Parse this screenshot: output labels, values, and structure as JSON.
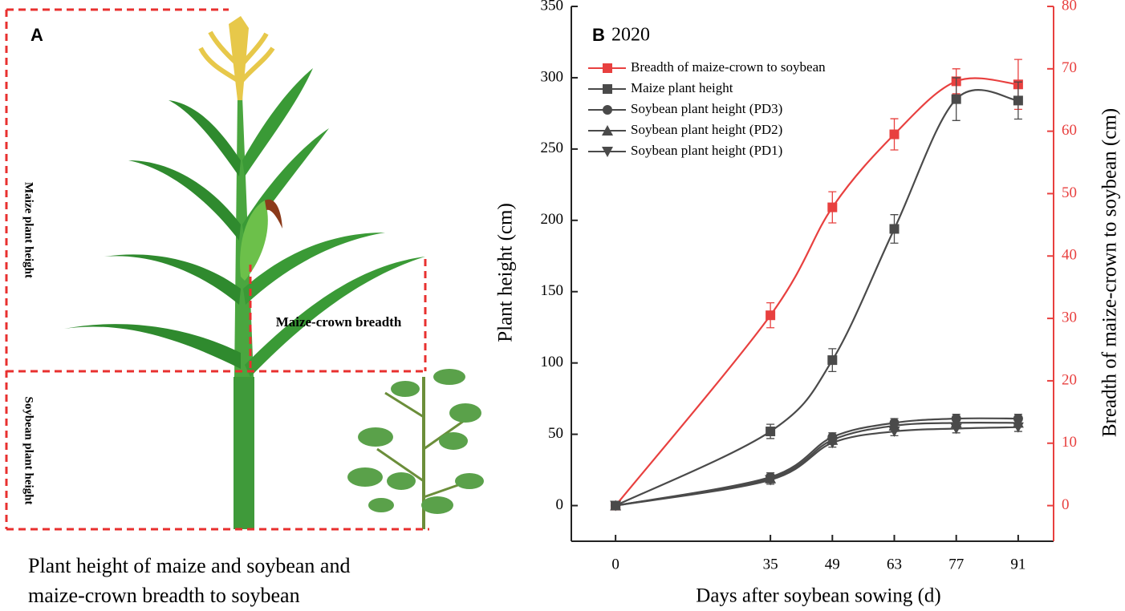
{
  "illustration": {
    "panel_label": "A",
    "maize_height_label": "Maize plant height",
    "soybean_height_label": "Soybean plant height",
    "crown_breadth_label": "Maize-crown breadth",
    "caption": [
      "Plant height of maize and soybean and",
      "maize-crown breadth to soybean"
    ]
  },
  "chart_data": {
    "type": "line",
    "panel_label": "B",
    "title": "2020",
    "xlabel": "Days after soybean sowing (d)",
    "ylabel": "Plant height (cm)",
    "y2label": "Breadth of maize-crown to soybean (cm)",
    "x": [
      0,
      35,
      49,
      63,
      77,
      91
    ],
    "xlim": [
      -10,
      99
    ],
    "xticks": [
      0,
      35,
      49,
      63,
      77,
      91
    ],
    "ylim": [
      -25,
      350
    ],
    "yticks": [
      0,
      50,
      100,
      150,
      200,
      250,
      300,
      350
    ],
    "y2lim": [
      -5.71,
      80
    ],
    "y2ticks": [
      0,
      10,
      20,
      30,
      40,
      50,
      60,
      70,
      80
    ],
    "legend": "upper left",
    "series": [
      {
        "name": "Breadth of maize-crown to soybean",
        "color": "#e8403f",
        "marker": "square",
        "axis": "y2",
        "values": [
          0,
          30.5,
          47.8,
          59.5,
          68,
          67.5
        ],
        "errors": [
          0,
          2,
          2.5,
          2.5,
          2,
          4
        ]
      },
      {
        "name": "Maize plant height",
        "color": "#4a4a4a",
        "marker": "square",
        "values": [
          0,
          52,
          102,
          194,
          285,
          284
        ],
        "errors": [
          0,
          5,
          8,
          10,
          15,
          13
        ]
      },
      {
        "name": "Soybean plant height (PD3)",
        "color": "#4a4a4a",
        "marker": "circle",
        "values": [
          0,
          20,
          48,
          58,
          61,
          61
        ],
        "errors": [
          0,
          3,
          3,
          3,
          3,
          3
        ]
      },
      {
        "name": "Soybean plant height (PD2)",
        "color": "#4a4a4a",
        "marker": "triangle-up",
        "values": [
          0,
          19,
          46,
          56,
          58,
          58
        ],
        "errors": [
          0,
          3,
          3,
          3,
          3,
          3
        ]
      },
      {
        "name": "Soybean plant height (PD1)",
        "color": "#4a4a4a",
        "marker": "triangle-down",
        "values": [
          0,
          18,
          44,
          52,
          54,
          55
        ],
        "errors": [
          0,
          3,
          3,
          3,
          3,
          3
        ]
      }
    ]
  }
}
